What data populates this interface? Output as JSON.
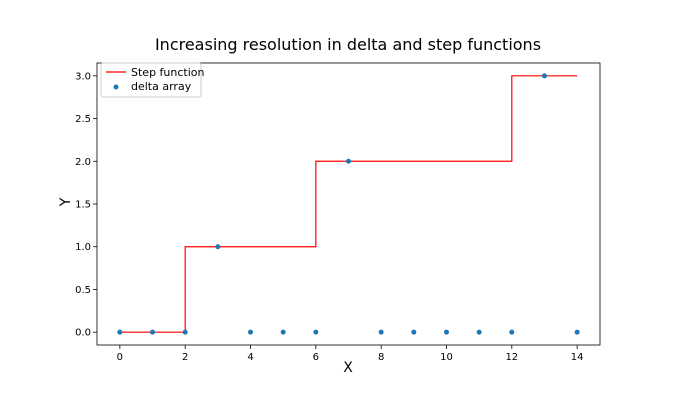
{
  "chart_data": {
    "type": "line",
    "title": "Increasing resolution in delta and step functions",
    "xlabel": "X",
    "ylabel": "Y",
    "xlim": [
      -0.7,
      14.7
    ],
    "ylim": [
      -0.15,
      3.15
    ],
    "xticks": [
      0,
      2,
      4,
      6,
      8,
      10,
      12,
      14
    ],
    "yticks": [
      0.0,
      0.5,
      1.0,
      1.5,
      2.0,
      2.5,
      3.0
    ],
    "xtick_labels": [
      "0",
      "2",
      "4",
      "6",
      "8",
      "10",
      "12",
      "14"
    ],
    "ytick_labels": [
      "0.0",
      "0.5",
      "1.0",
      "1.5",
      "2.0",
      "2.5",
      "3.0"
    ],
    "grid": false,
    "legend_position": "top-left",
    "series": [
      {
        "name": "Step function",
        "kind": "step",
        "color": "#ff0000",
        "x": [
          0,
          2,
          2,
          6,
          6,
          12,
          12,
          14
        ],
        "y": [
          0,
          0,
          1,
          1,
          2,
          2,
          3,
          3
        ]
      },
      {
        "name": "delta array",
        "kind": "scatter",
        "color": "#1f77b4",
        "x": [
          0,
          1,
          2,
          3,
          4,
          5,
          6,
          7,
          8,
          9,
          10,
          11,
          12,
          13,
          14
        ],
        "y": [
          0,
          0,
          0,
          1,
          0,
          0,
          0,
          2,
          0,
          0,
          0,
          0,
          0,
          3,
          0
        ]
      }
    ]
  }
}
